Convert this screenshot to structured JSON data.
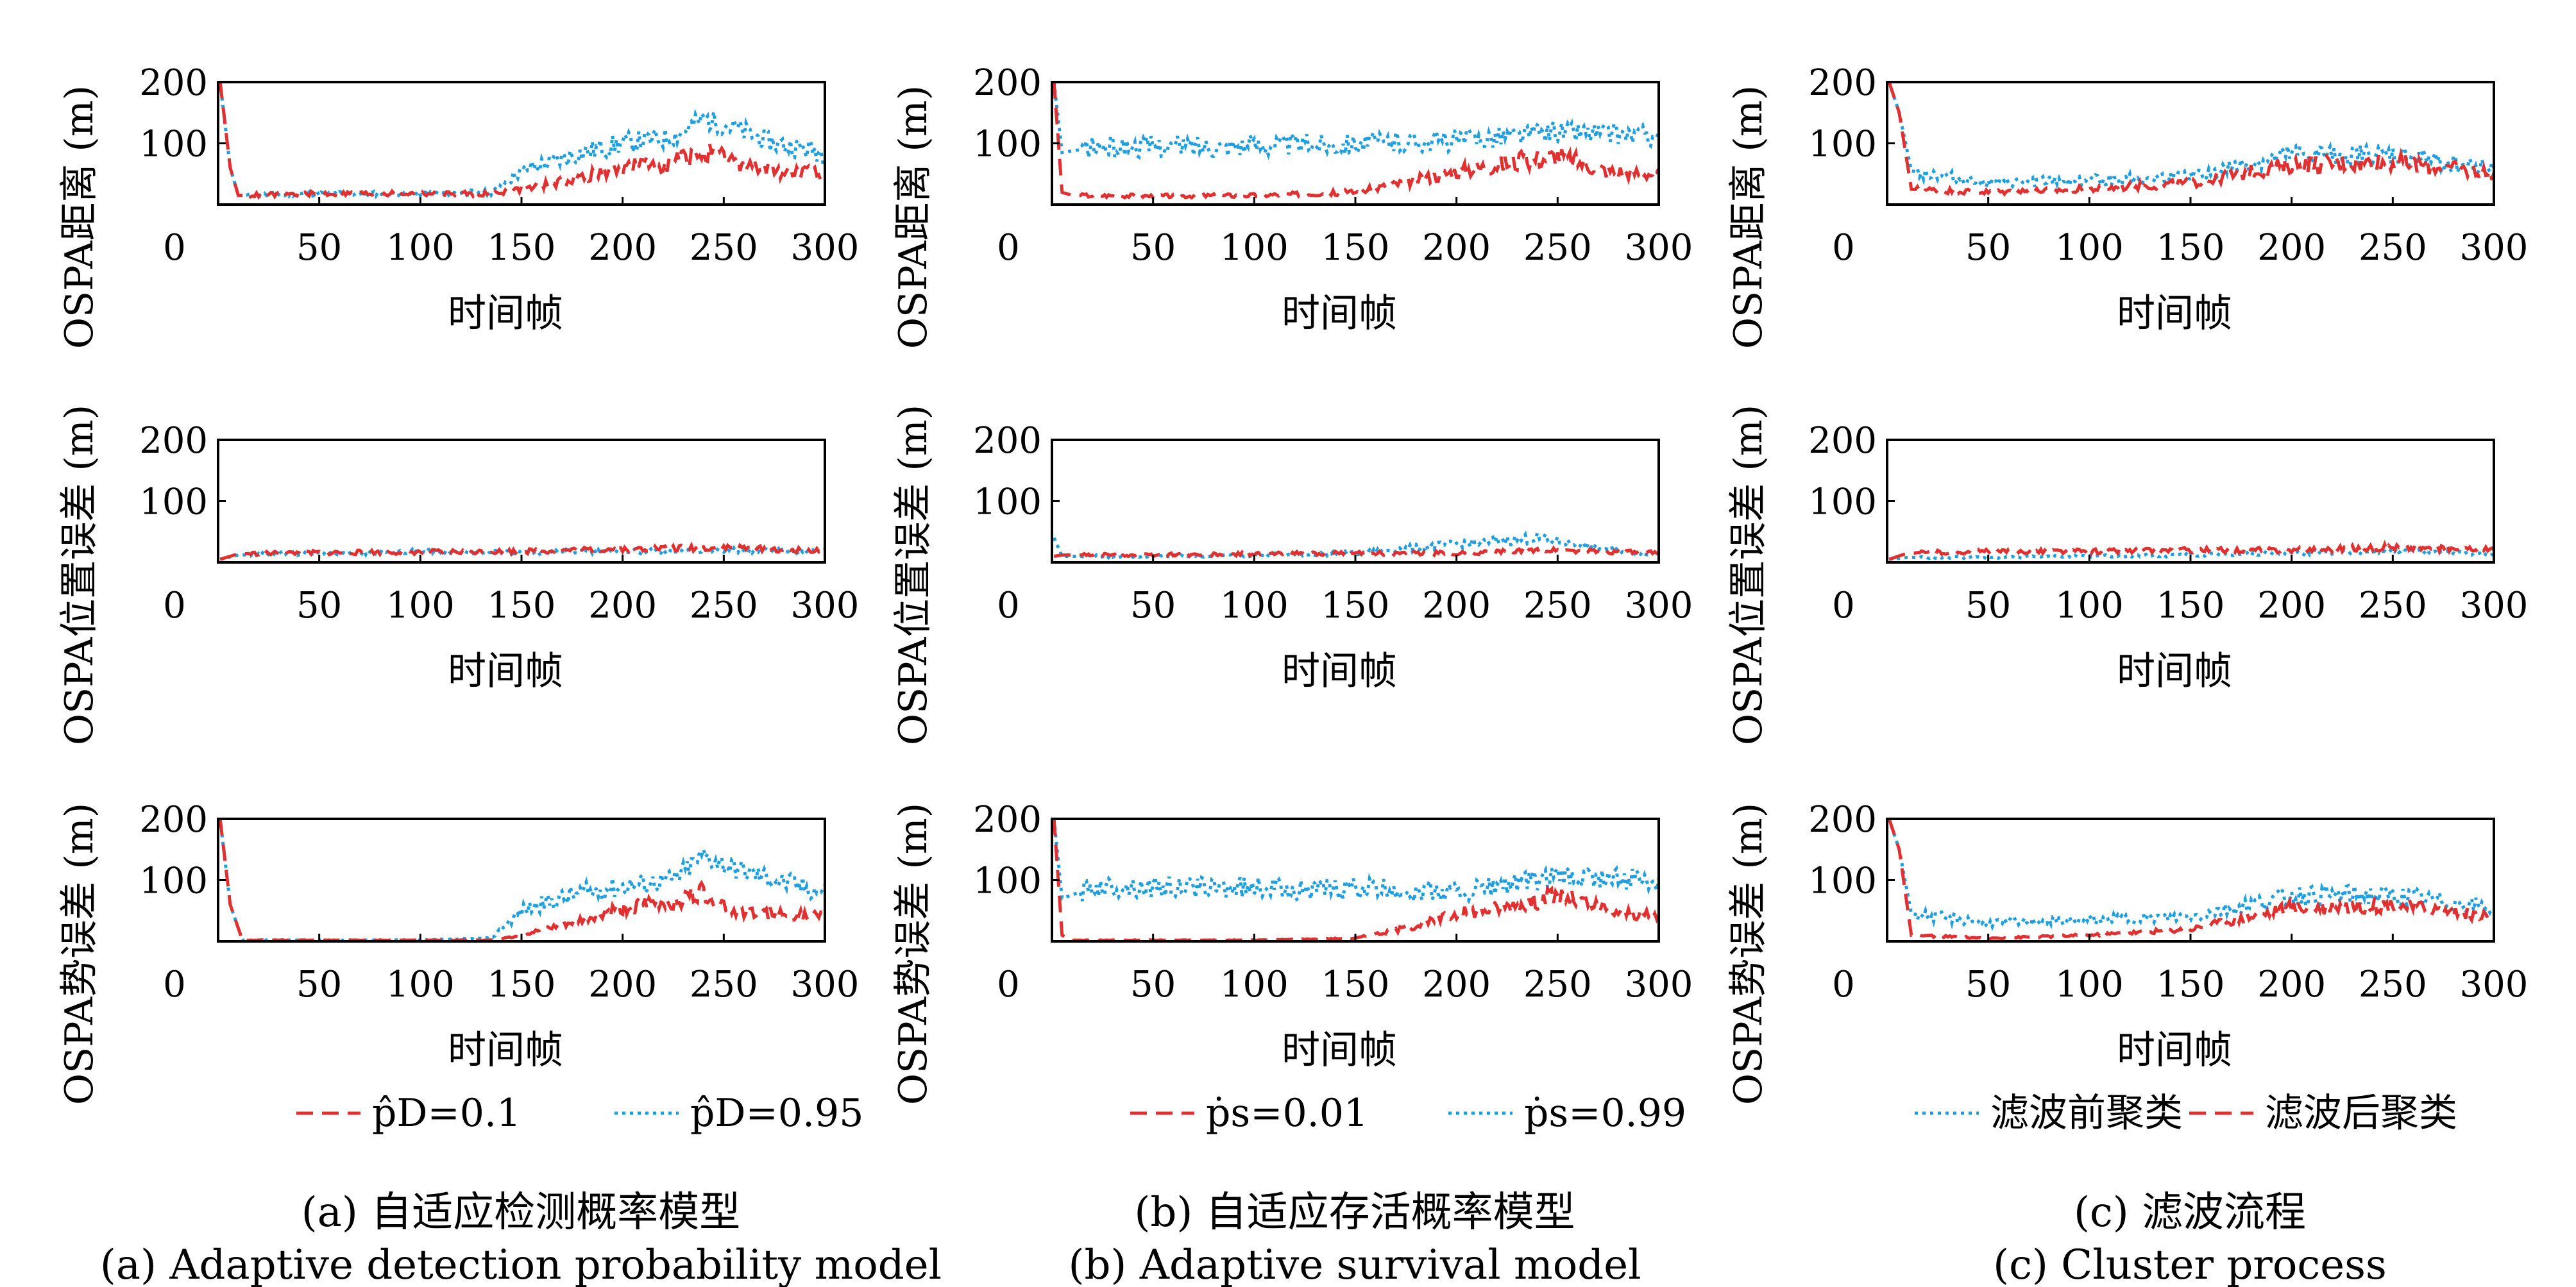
{
  "chart_data": [
    {
      "type": "line",
      "panel": "a",
      "row": 0,
      "ylabel": "OSPA距离 (m)",
      "xlabel": "时间帧",
      "xlim": [
        0,
        300
      ],
      "ylim": [
        0,
        200
      ],
      "xticks": [
        0,
        50,
        100,
        150,
        200,
        250,
        300
      ],
      "yticks": [
        0,
        100,
        200
      ],
      "series": [
        {
          "name": "p̂D=0.95",
          "color": "#1f9fe0",
          "style": "dotted",
          "x": [
            1,
            6,
            10,
            50,
            100,
            135,
            150,
            175,
            200,
            225,
            240,
            255,
            275,
            300
          ],
          "y": [
            200,
            60,
            15,
            18,
            18,
            20,
            55,
            80,
            100,
            110,
            140,
            125,
            100,
            85
          ]
        },
        {
          "name": "p̂D=0.1",
          "color": "#e03030",
          "style": "dashed",
          "x": [
            1,
            6,
            10,
            50,
            100,
            135,
            150,
            175,
            200,
            225,
            240,
            255,
            275,
            300
          ],
          "y": [
            200,
            60,
            15,
            18,
            18,
            18,
            25,
            40,
            60,
            70,
            85,
            70,
            55,
            50
          ]
        }
      ]
    },
    {
      "type": "line",
      "panel": "a",
      "row": 1,
      "ylabel": "OSPA位置误差 (m)",
      "xlabel": "时间帧",
      "xlim": [
        0,
        300
      ],
      "ylim": [
        0,
        200
      ],
      "xticks": [
        0,
        50,
        100,
        150,
        200,
        250,
        300
      ],
      "yticks": [
        0,
        100,
        200
      ],
      "series": [
        {
          "name": "p̂D=0.95",
          "color": "#1f9fe0",
          "style": "dotted",
          "x": [
            1,
            10,
            50,
            100,
            150,
            200,
            250,
            300
          ],
          "y": [
            5,
            12,
            15,
            18,
            16,
            18,
            20,
            18
          ]
        },
        {
          "name": "p̂D=0.1",
          "color": "#e03030",
          "style": "dashed",
          "x": [
            1,
            10,
            50,
            100,
            150,
            200,
            250,
            300
          ],
          "y": [
            5,
            14,
            16,
            17,
            18,
            22,
            24,
            18
          ]
        }
      ]
    },
    {
      "type": "line",
      "panel": "a",
      "row": 2,
      "ylabel": "OSPA势误差 (m)",
      "xlabel": "时间帧",
      "xlim": [
        0,
        300
      ],
      "ylim": [
        0,
        200
      ],
      "xticks": [
        0,
        50,
        100,
        150,
        200,
        250,
        300
      ],
      "yticks": [
        0,
        100,
        200
      ],
      "series": [
        {
          "name": "p̂D=0.95",
          "color": "#1f9fe0",
          "style": "dotted",
          "x": [
            1,
            6,
            12,
            50,
            100,
            135,
            150,
            175,
            200,
            225,
            240,
            255,
            275,
            300
          ],
          "y": [
            200,
            60,
            2,
            2,
            2,
            5,
            50,
            75,
            90,
            100,
            140,
            120,
            100,
            80
          ]
        },
        {
          "name": "p̂D=0.1",
          "color": "#e03030",
          "style": "dashed",
          "x": [
            1,
            6,
            12,
            50,
            100,
            135,
            150,
            175,
            200,
            225,
            240,
            255,
            275,
            300
          ],
          "y": [
            200,
            60,
            2,
            2,
            2,
            2,
            10,
            30,
            55,
            65,
            80,
            50,
            45,
            40
          ]
        }
      ]
    },
    {
      "type": "line",
      "panel": "b",
      "row": 0,
      "ylabel": "OSPA距离 (m)",
      "xlabel": "时间帧",
      "xlim": [
        0,
        300
      ],
      "ylim": [
        0,
        200
      ],
      "xticks": [
        0,
        50,
        100,
        150,
        200,
        250,
        300
      ],
      "yticks": [
        0,
        100,
        200
      ],
      "series": [
        {
          "name": "ṗs=0.99",
          "color": "#1f9fe0",
          "style": "dotted",
          "x": [
            1,
            5,
            20,
            50,
            100,
            150,
            200,
            250,
            300
          ],
          "y": [
            200,
            85,
            93,
            95,
            97,
            100,
            105,
            120,
            112
          ]
        },
        {
          "name": "ṗs=0.01",
          "color": "#e03030",
          "style": "dashed",
          "x": [
            1,
            5,
            10,
            50,
            100,
            150,
            180,
            200,
            230,
            250,
            275,
            300
          ],
          "y": [
            200,
            20,
            15,
            14,
            15,
            20,
            40,
            55,
            70,
            80,
            55,
            50
          ]
        }
      ]
    },
    {
      "type": "line",
      "panel": "b",
      "row": 1,
      "ylabel": "OSPA位置误差 (m)",
      "xlabel": "时间帧",
      "xlim": [
        0,
        300
      ],
      "ylim": [
        0,
        200
      ],
      "xticks": [
        0,
        50,
        100,
        150,
        200,
        250,
        300
      ],
      "yticks": [
        0,
        100,
        200
      ],
      "series": [
        {
          "name": "ṗs=0.99",
          "color": "#1f9fe0",
          "style": "dotted",
          "x": [
            1,
            5,
            50,
            100,
            150,
            200,
            240,
            280,
            300
          ],
          "y": [
            40,
            10,
            10,
            12,
            15,
            30,
            40,
            18,
            15
          ]
        },
        {
          "name": "ṗs=0.01",
          "color": "#e03030",
          "style": "dashed",
          "x": [
            1,
            5,
            50,
            100,
            150,
            200,
            250,
            300
          ],
          "y": [
            10,
            12,
            12,
            14,
            15,
            15,
            20,
            15
          ]
        }
      ]
    },
    {
      "type": "line",
      "panel": "b",
      "row": 2,
      "ylabel": "OSPA势误差 (m)",
      "xlabel": "时间帧",
      "xlim": [
        0,
        300
      ],
      "ylim": [
        0,
        200
      ],
      "xticks": [
        0,
        50,
        100,
        150,
        200,
        250,
        300
      ],
      "yticks": [
        0,
        100,
        200
      ],
      "series": [
        {
          "name": "ṗs=0.99",
          "color": "#1f9fe0",
          "style": "dotted",
          "x": [
            1,
            5,
            20,
            50,
            100,
            140,
            150,
            200,
            250,
            300
          ],
          "y": [
            200,
            70,
            88,
            88,
            88,
            84,
            86,
            80,
            105,
            100
          ]
        },
        {
          "name": "ṗs=0.01",
          "color": "#e03030",
          "style": "dashed",
          "x": [
            1,
            5,
            10,
            50,
            100,
            150,
            180,
            200,
            230,
            250,
            275,
            300
          ],
          "y": [
            200,
            10,
            2,
            2,
            2,
            5,
            25,
            45,
            60,
            75,
            50,
            40
          ]
        }
      ]
    },
    {
      "type": "line",
      "panel": "c",
      "row": 0,
      "ylabel": "OSPA距离 (m)",
      "xlabel": "时间帧",
      "xlim": [
        0,
        300
      ],
      "ylim": [
        0,
        200
      ],
      "xticks": [
        0,
        50,
        100,
        150,
        200,
        250,
        300
      ],
      "yticks": [
        0,
        100,
        200
      ],
      "series": [
        {
          "name": "滤波前聚类",
          "color": "#1f9fe0",
          "style": "dotted",
          "x": [
            1,
            6,
            12,
            50,
            100,
            150,
            200,
            250,
            300
          ],
          "y": [
            200,
            150,
            55,
            35,
            40,
            45,
            80,
            80,
            60
          ]
        },
        {
          "name": "滤波后聚类",
          "color": "#e03030",
          "style": "dashed",
          "x": [
            1,
            6,
            12,
            50,
            100,
            150,
            200,
            250,
            300
          ],
          "y": [
            200,
            150,
            25,
            20,
            25,
            35,
            65,
            70,
            50
          ]
        }
      ]
    },
    {
      "type": "line",
      "panel": "c",
      "row": 1,
      "ylabel": "OSPA位置误差 (m)",
      "xlabel": "时间帧",
      "xlim": [
        0,
        300
      ],
      "ylim": [
        0,
        200
      ],
      "xticks": [
        0,
        50,
        100,
        150,
        200,
        250,
        300
      ],
      "yticks": [
        0,
        100,
        200
      ],
      "series": [
        {
          "name": "滤波前聚类",
          "color": "#1f9fe0",
          "style": "dotted",
          "x": [
            1,
            10,
            50,
            100,
            150,
            200,
            250,
            300
          ],
          "y": [
            5,
            8,
            8,
            10,
            12,
            15,
            20,
            12
          ]
        },
        {
          "name": "滤波后聚类",
          "color": "#e03030",
          "style": "dashed",
          "x": [
            1,
            10,
            50,
            100,
            150,
            200,
            250,
            300
          ],
          "y": [
            5,
            15,
            18,
            18,
            20,
            20,
            25,
            20
          ]
        }
      ]
    },
    {
      "type": "line",
      "panel": "c",
      "row": 2,
      "ylabel": "OSPA势误差 (m)",
      "xlabel": "时间帧",
      "xlim": [
        0,
        300
      ],
      "ylim": [
        0,
        200
      ],
      "xticks": [
        0,
        50,
        100,
        150,
        200,
        250,
        300
      ],
      "yticks": [
        0,
        100,
        200
      ],
      "series": [
        {
          "name": "滤波前聚类",
          "color": "#1f9fe0",
          "style": "dotted",
          "x": [
            1,
            6,
            12,
            50,
            100,
            150,
            200,
            250,
            300
          ],
          "y": [
            200,
            150,
            45,
            30,
            35,
            40,
            75,
            75,
            55
          ]
        },
        {
          "name": "滤波后聚类",
          "color": "#e03030",
          "style": "dashed",
          "x": [
            1,
            6,
            12,
            50,
            100,
            150,
            200,
            250,
            300
          ],
          "y": [
            200,
            150,
            10,
            5,
            10,
            20,
            55,
            60,
            40
          ]
        }
      ]
    }
  ],
  "legends": [
    {
      "items": [
        {
          "text": "p̂D=0.1",
          "color": "#e03030",
          "style": "dashed"
        },
        {
          "text": "p̂D=0.95",
          "color": "#1f9fe0",
          "style": "dotted"
        }
      ]
    },
    {
      "items": [
        {
          "text": "ṗs=0.01",
          "color": "#e03030",
          "style": "dashed"
        },
        {
          "text": "ṗs=0.99",
          "color": "#1f9fe0",
          "style": "dotted"
        }
      ]
    },
    {
      "items": [
        {
          "text": "滤波前聚类",
          "color": "#1f9fe0",
          "style": "dotted"
        },
        {
          "text": "滤波后聚类",
          "color": "#e03030",
          "style": "dashed"
        }
      ]
    }
  ],
  "captions": [
    {
      "zh": "(a) 自适应检测概率模型",
      "en": "(a) Adaptive detection probability model"
    },
    {
      "zh": "(b) 自适应存活概率模型",
      "en": "(b) Adaptive survival model"
    },
    {
      "zh": "(c) 滤波流程",
      "en": "(c) Cluster process"
    }
  ]
}
